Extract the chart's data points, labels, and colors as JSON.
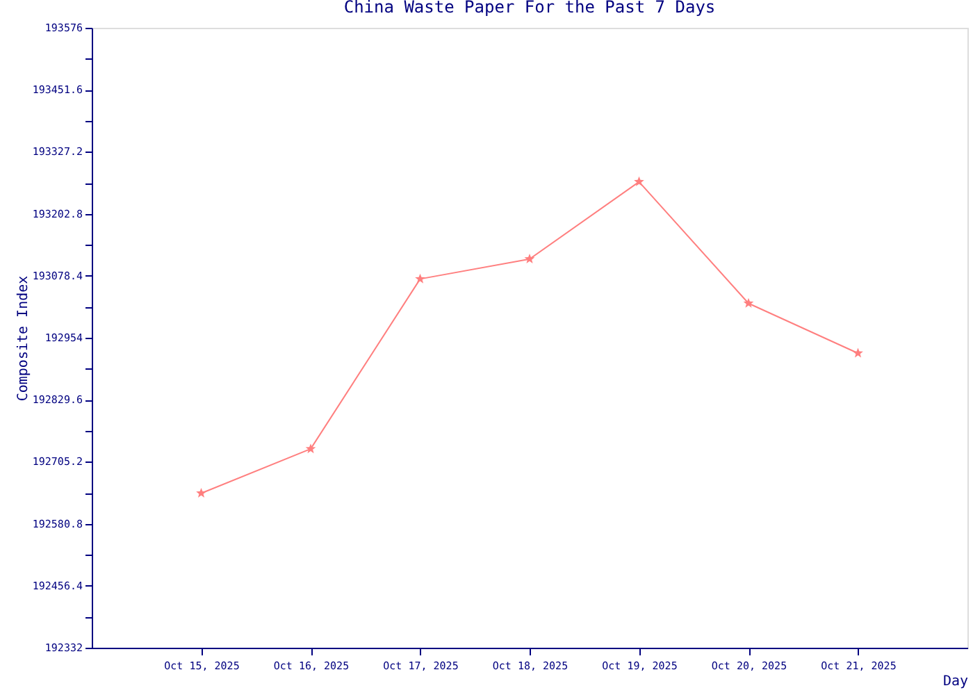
{
  "chart_data": {
    "type": "line",
    "title": "China Waste Paper For the Past 7 Days",
    "xlabel": "Day",
    "ylabel": "Composite Index",
    "categories": [
      "Oct 15, 2025",
      "Oct 16, 2025",
      "Oct 17, 2025",
      "Oct 18, 2025",
      "Oct 19, 2025",
      "Oct 20, 2025",
      "Oct 21, 2025"
    ],
    "series": [
      {
        "color": "#ff7f7f",
        "values": [
          192642,
          192731,
          193072,
          193112,
          193267,
          193023,
          192923
        ]
      }
    ],
    "ylim": [
      192332,
      193576
    ],
    "yticks": [
      192332,
      {
        "value": 192394.2,
        "label": null
      },
      192456.4,
      {
        "value": 192518.6,
        "label": null
      },
      192580.8,
      {
        "value": 192643,
        "label": null
      },
      192705.2,
      {
        "value": 192767.4,
        "label": null
      },
      192829.6,
      {
        "value": 192891.8,
        "label": null
      },
      192954,
      {
        "value": 193016.2,
        "label": null
      },
      193078.4,
      {
        "value": 193140.6,
        "label": null
      },
      193202.8,
      {
        "value": 193265,
        "label": null
      },
      193327.2,
      {
        "value": 193389.4,
        "label": null
      },
      193451.6,
      {
        "value": 193513.8,
        "label": null
      },
      193576
    ],
    "grid": false,
    "marker": "star",
    "line_style": "solid"
  }
}
